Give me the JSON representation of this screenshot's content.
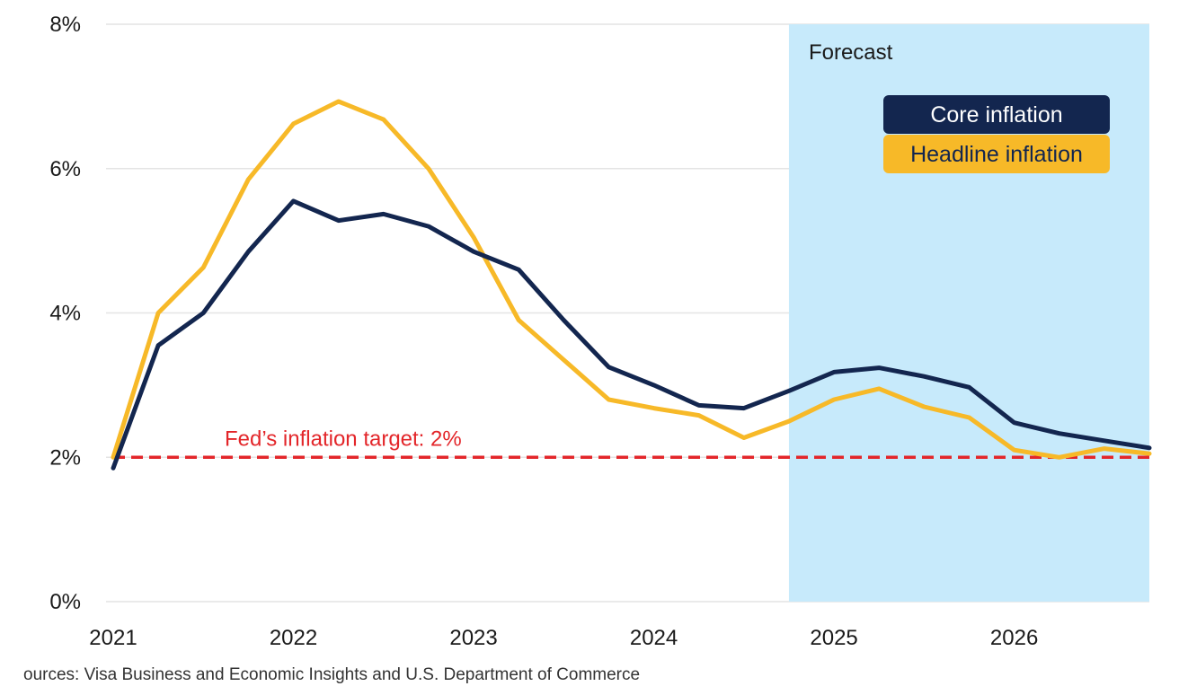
{
  "chart_data": {
    "type": "line",
    "x": [
      2021,
      2021.25,
      2021.5,
      2021.75,
      2022,
      2022.25,
      2022.5,
      2022.75,
      2023,
      2023.25,
      2023.5,
      2023.75,
      2024,
      2024.25,
      2024.5,
      2024.75,
      2025,
      2025.25,
      2025.5,
      2025.75,
      2026,
      2026.25,
      2026.5,
      2026.75
    ],
    "series": [
      {
        "name": "Core inflation",
        "color": "#13264f",
        "values": [
          1.85,
          3.55,
          4.0,
          4.85,
          5.55,
          5.28,
          5.37,
          5.2,
          4.85,
          4.6,
          3.9,
          3.25,
          3.0,
          2.72,
          2.68,
          2.92,
          3.18,
          3.24,
          3.12,
          2.97,
          2.48,
          2.33,
          2.23,
          2.13
        ]
      },
      {
        "name": "Headline inflation",
        "color": "#f7b928",
        "values": [
          2.0,
          4.0,
          4.63,
          5.85,
          6.62,
          6.93,
          6.68,
          6.0,
          5.05,
          3.9,
          3.35,
          2.8,
          2.68,
          2.58,
          2.27,
          2.5,
          2.8,
          2.95,
          2.7,
          2.55,
          2.1,
          2.0,
          2.12,
          2.05
        ]
      }
    ],
    "x_ticks": [
      "2021",
      "2022",
      "2023",
      "2024",
      "2025",
      "2026"
    ],
    "y_ticks": [
      "0%",
      "2%",
      "4%",
      "6%",
      "8%"
    ],
    "ylim": [
      0,
      8
    ],
    "xlim": [
      2021,
      2026.75
    ],
    "grid": true,
    "legend_position": "top-right",
    "forecast_region": {
      "label": "Forecast",
      "x_start": 2024.75,
      "x_end": 2026.75,
      "color": "#c7eafb"
    },
    "reference_line": {
      "label": "Fed’s inflation target: 2%",
      "y": 2,
      "color": "#e3262a"
    }
  },
  "source_note": "ources: Visa Business and Economic Insights and U.S. Department of Commerce"
}
